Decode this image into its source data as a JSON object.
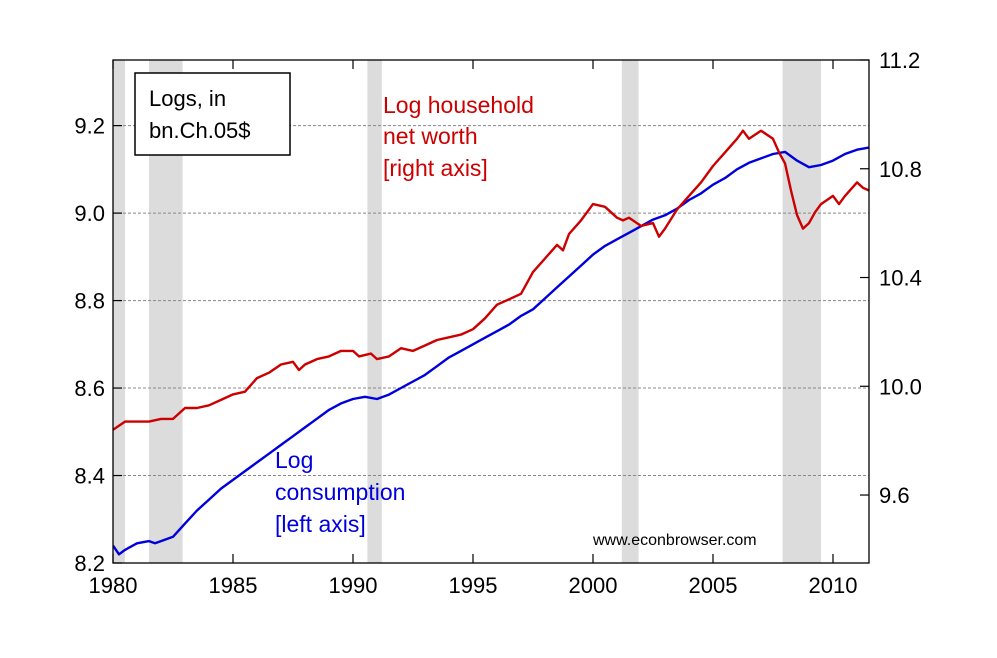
{
  "chart_data": {
    "type": "line",
    "title": "",
    "xlabel": "",
    "xlim": [
      1980,
      2011.5
    ],
    "x_ticks": [
      "1980",
      "1985",
      "1990",
      "1995",
      "2000",
      "2005",
      "2010"
    ],
    "left_axis": {
      "ylim": [
        8.2,
        9.35
      ],
      "ticks": [
        "8.2",
        "8.4",
        "8.6",
        "8.8",
        "9.0",
        "9.2"
      ]
    },
    "right_axis": {
      "ylim": [
        9.35,
        11.2
      ],
      "ticks": [
        "9.6",
        "10.0",
        "10.4",
        "10.8",
        "11.2"
      ]
    },
    "grid": "horizontal dashed",
    "recessions": [
      {
        "start": 1980.0,
        "end": 1980.5
      },
      {
        "start": 1981.5,
        "end": 1982.9
      },
      {
        "start": 1990.6,
        "end": 1991.2
      },
      {
        "start": 2001.2,
        "end": 2001.9
      },
      {
        "start": 2007.9,
        "end": 2009.5
      }
    ],
    "legend_box": {
      "line1": "Logs, in",
      "line2": "bn.Ch.05$",
      "placement": "top-left"
    },
    "credit": "www.econbrowser.com",
    "series": [
      {
        "name": "Log consumption",
        "axis": "left",
        "color": "#0000dd",
        "labels": [
          "Log",
          "consumption",
          "[left axis]"
        ],
        "x": [
          1980.0,
          1980.25,
          1980.5,
          1981.0,
          1981.5,
          1981.75,
          1982.0,
          1982.5,
          1983.0,
          1983.5,
          1984.0,
          1984.5,
          1985.0,
          1985.5,
          1986.0,
          1986.5,
          1987.0,
          1987.5,
          1988.0,
          1988.5,
          1989.0,
          1989.5,
          1990.0,
          1990.5,
          1991.0,
          1991.5,
          1992.0,
          1992.5,
          1993.0,
          1993.5,
          1994.0,
          1994.5,
          1995.0,
          1995.5,
          1996.0,
          1996.5,
          1997.0,
          1997.5,
          1998.0,
          1998.5,
          1999.0,
          1999.5,
          2000.0,
          2000.5,
          2001.0,
          2001.5,
          2002.0,
          2002.5,
          2003.0,
          2003.5,
          2004.0,
          2004.5,
          2005.0,
          2005.5,
          2006.0,
          2006.5,
          2007.0,
          2007.5,
          2008.0,
          2008.5,
          2009.0,
          2009.5,
          2010.0,
          2010.5,
          2011.0,
          2011.5
        ],
        "y": [
          8.24,
          8.22,
          8.23,
          8.245,
          8.25,
          8.245,
          8.25,
          8.26,
          8.29,
          8.32,
          8.345,
          8.37,
          8.39,
          8.41,
          8.43,
          8.45,
          8.47,
          8.49,
          8.51,
          8.53,
          8.55,
          8.565,
          8.575,
          8.58,
          8.575,
          8.585,
          8.6,
          8.615,
          8.63,
          8.65,
          8.67,
          8.685,
          8.7,
          8.715,
          8.73,
          8.745,
          8.765,
          8.78,
          8.805,
          8.83,
          8.855,
          8.88,
          8.905,
          8.925,
          8.94,
          8.955,
          8.97,
          8.985,
          8.995,
          9.01,
          9.03,
          9.045,
          9.065,
          9.08,
          9.1,
          9.115,
          9.125,
          9.135,
          9.14,
          9.12,
          9.105,
          9.11,
          9.12,
          9.135,
          9.145,
          9.15
        ]
      },
      {
        "name": "Log household net worth",
        "axis": "right",
        "color": "#cc0000",
        "labels": [
          "Log household",
          "net worth",
          "[right axis]"
        ],
        "x": [
          1980.0,
          1980.5,
          1981.0,
          1981.5,
          1982.0,
          1982.5,
          1983.0,
          1983.5,
          1984.0,
          1984.5,
          1985.0,
          1985.5,
          1986.0,
          1986.5,
          1987.0,
          1987.5,
          1987.75,
          1988.0,
          1988.5,
          1989.0,
          1989.5,
          1990.0,
          1990.25,
          1990.75,
          1991.0,
          1991.5,
          1992.0,
          1992.5,
          1993.0,
          1993.5,
          1994.0,
          1994.5,
          1995.0,
          1995.5,
          1996.0,
          1996.5,
          1997.0,
          1997.5,
          1998.0,
          1998.5,
          1998.75,
          1999.0,
          1999.5,
          1999.75,
          2000.0,
          2000.5,
          2001.0,
          2001.25,
          2001.5,
          2002.0,
          2002.5,
          2002.75,
          2003.0,
          2003.5,
          2004.0,
          2004.5,
          2005.0,
          2005.5,
          2006.0,
          2006.25,
          2006.5,
          2007.0,
          2007.5,
          2007.75,
          2008.0,
          2008.25,
          2008.5,
          2008.75,
          2009.0,
          2009.25,
          2009.5,
          2010.0,
          2010.25,
          2010.5,
          2011.0,
          2011.25,
          2011.5
        ],
        "y": [
          9.84,
          9.87,
          9.87,
          9.87,
          9.88,
          9.88,
          9.92,
          9.92,
          9.93,
          9.95,
          9.97,
          9.98,
          10.03,
          10.05,
          10.08,
          10.09,
          10.06,
          10.08,
          10.1,
          10.11,
          10.13,
          10.13,
          10.11,
          10.12,
          10.1,
          10.11,
          10.14,
          10.13,
          10.15,
          10.17,
          10.18,
          10.19,
          10.21,
          10.25,
          10.3,
          10.32,
          10.34,
          10.42,
          10.47,
          10.52,
          10.5,
          10.56,
          10.61,
          10.64,
          10.67,
          10.66,
          10.62,
          10.61,
          10.62,
          10.59,
          10.6,
          10.55,
          10.58,
          10.65,
          10.7,
          10.75,
          10.81,
          10.86,
          10.91,
          10.94,
          10.91,
          10.94,
          10.91,
          10.86,
          10.82,
          10.72,
          10.63,
          10.58,
          10.6,
          10.64,
          10.67,
          10.7,
          10.67,
          10.7,
          10.75,
          10.73,
          10.72
        ]
      }
    ]
  }
}
